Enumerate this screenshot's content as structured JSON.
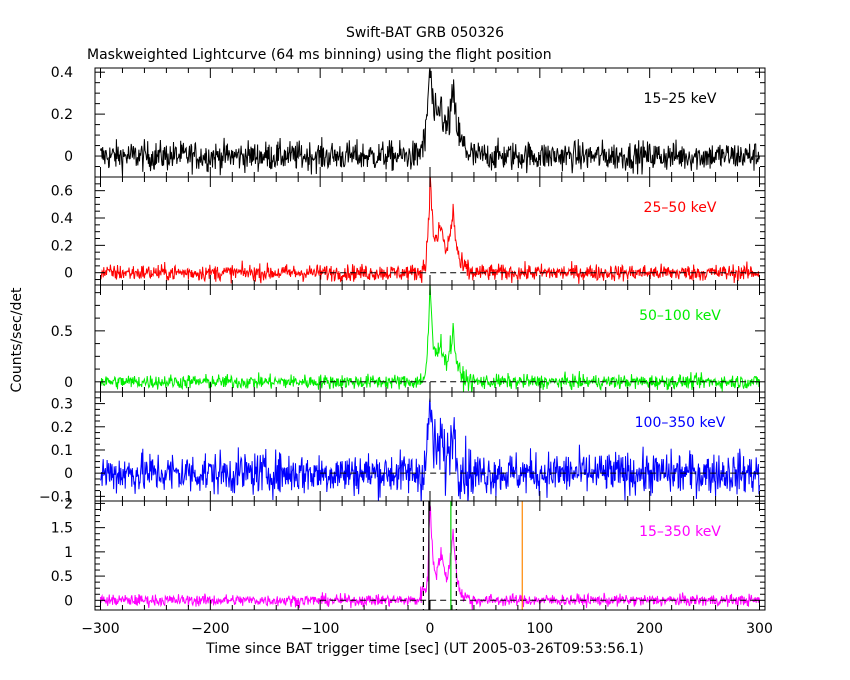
{
  "figure": {
    "title": "Swift-BAT GRB 050326",
    "subtitle": "Maskweighted Lightcurve (64 ms binning) using the flight position",
    "ylabel": "Counts/sec/det",
    "xlabel": "Time since BAT trigger time [sec] (UT 2005-03-26T09:53:56.1)"
  },
  "chart_data": {
    "type": "line",
    "x_axis": {
      "min": -305,
      "max": 305,
      "ticks": [
        -300,
        -200,
        -100,
        0,
        100,
        200,
        300
      ],
      "tick_labels": [
        "−300",
        "−200",
        "−100",
        "0",
        "100",
        "200",
        "300"
      ]
    },
    "panels": [
      {
        "band": "15–25 keV",
        "color": "#000000",
        "ylim": [
          -0.1,
          0.42
        ],
        "ticks": [
          0,
          0.2,
          0.4
        ],
        "tick_labels": [
          "0",
          "0.2",
          "0.4"
        ],
        "zero_line": false,
        "noise_sigma": 0.035,
        "burst": [
          {
            "t": -10,
            "v": 0.02
          },
          {
            "t": -4,
            "v": 0.08
          },
          {
            "t": -1,
            "v": 0.36
          },
          {
            "t": 0,
            "v": 0.42
          },
          {
            "t": 3,
            "v": 0.22
          },
          {
            "t": 6,
            "v": 0.16
          },
          {
            "t": 10,
            "v": 0.25
          },
          {
            "t": 14,
            "v": 0.12
          },
          {
            "t": 18,
            "v": 0.18
          },
          {
            "t": 21,
            "v": 0.29
          },
          {
            "t": 24,
            "v": 0.16
          },
          {
            "t": 28,
            "v": 0.06
          },
          {
            "t": 36,
            "v": 0.02
          }
        ]
      },
      {
        "band": "25–50 keV",
        "color": "#ff0000",
        "ylim": [
          -0.09,
          0.7
        ],
        "ticks": [
          0,
          0.2,
          0.4,
          0.6
        ],
        "tick_labels": [
          "0",
          "0.2",
          "0.4",
          "0.6"
        ],
        "zero_line": true,
        "noise_sigma": 0.03,
        "burst": [
          {
            "t": -10,
            "v": 0.01
          },
          {
            "t": -4,
            "v": 0.05
          },
          {
            "t": -1,
            "v": 0.45
          },
          {
            "t": 0,
            "v": 0.7
          },
          {
            "t": 3,
            "v": 0.3
          },
          {
            "t": 6,
            "v": 0.22
          },
          {
            "t": 10,
            "v": 0.35
          },
          {
            "t": 14,
            "v": 0.15
          },
          {
            "t": 18,
            "v": 0.25
          },
          {
            "t": 21,
            "v": 0.45
          },
          {
            "t": 24,
            "v": 0.2
          },
          {
            "t": 28,
            "v": 0.05
          },
          {
            "t": 36,
            "v": 0.01
          }
        ]
      },
      {
        "band": "50–100 keV",
        "color": "#00ee00",
        "ylim": [
          -0.1,
          0.95
        ],
        "ticks": [
          0,
          0.5
        ],
        "tick_labels": [
          "0",
          "0.5"
        ],
        "zero_line": true,
        "noise_sigma": 0.035,
        "burst": [
          {
            "t": -10,
            "v": 0.01
          },
          {
            "t": -4,
            "v": 0.06
          },
          {
            "t": -1,
            "v": 0.55
          },
          {
            "t": 0,
            "v": 0.95
          },
          {
            "t": 3,
            "v": 0.35
          },
          {
            "t": 6,
            "v": 0.25
          },
          {
            "t": 10,
            "v": 0.4
          },
          {
            "t": 14,
            "v": 0.18
          },
          {
            "t": 18,
            "v": 0.3
          },
          {
            "t": 21,
            "v": 0.5
          },
          {
            "t": 24,
            "v": 0.22
          },
          {
            "t": 28,
            "v": 0.05
          },
          {
            "t": 36,
            "v": 0.01
          }
        ]
      },
      {
        "band": "100–350 keV",
        "color": "#0000ff",
        "ylim": [
          -0.12,
          0.35
        ],
        "ticks": [
          -0.1,
          0,
          0.1,
          0.2,
          0.3
        ],
        "tick_labels": [
          "−0.1",
          "0",
          "0.1",
          "0.2",
          "0.3"
        ],
        "zero_line": true,
        "noise_sigma": 0.045,
        "burst": [
          {
            "t": -10,
            "v": 0.0
          },
          {
            "t": -4,
            "v": 0.03
          },
          {
            "t": -1,
            "v": 0.22
          },
          {
            "t": 0,
            "v": 0.32
          },
          {
            "t": 3,
            "v": 0.12
          },
          {
            "t": 6,
            "v": 0.08
          },
          {
            "t": 10,
            "v": 0.15
          },
          {
            "t": 14,
            "v": 0.05
          },
          {
            "t": 18,
            "v": 0.1
          },
          {
            "t": 21,
            "v": 0.22
          },
          {
            "t": 24,
            "v": 0.08
          },
          {
            "t": 28,
            "v": 0.02
          },
          {
            "t": 36,
            "v": 0.0
          }
        ]
      },
      {
        "band": "15–350 keV",
        "color": "#ff00ff",
        "ylim": [
          -0.2,
          2.05
        ],
        "ticks": [
          0,
          0.5,
          1,
          1.5,
          2
        ],
        "tick_labels": [
          "0",
          "0.5",
          "1",
          "1.5",
          "2"
        ],
        "zero_line": true,
        "noise_sigma": 0.06,
        "burst": [
          {
            "t": -10,
            "v": 0.05
          },
          {
            "t": -6,
            "v": 0.2
          },
          {
            "t": -2,
            "v": 0.4
          },
          {
            "t": -1,
            "v": 1.4
          },
          {
            "t": 0,
            "v": 2.0
          },
          {
            "t": 3,
            "v": 0.8
          },
          {
            "t": 6,
            "v": 0.55
          },
          {
            "t": 10,
            "v": 1.0
          },
          {
            "t": 14,
            "v": 0.45
          },
          {
            "t": 18,
            "v": 0.7
          },
          {
            "t": 21,
            "v": 1.45
          },
          {
            "t": 24,
            "v": 0.6
          },
          {
            "t": 28,
            "v": 0.12
          },
          {
            "t": 36,
            "v": 0.03
          }
        ],
        "vlines": [
          {
            "t": -6,
            "color": "#000000",
            "dash": true
          },
          {
            "t": -1,
            "color": "#000000",
            "dash": false
          },
          {
            "t": 19,
            "color": "#00cc00",
            "dash": false
          },
          {
            "t": 24,
            "color": "#000000",
            "dash": true
          },
          {
            "t": 84,
            "color": "#ff8800",
            "dash": false
          }
        ]
      }
    ]
  }
}
